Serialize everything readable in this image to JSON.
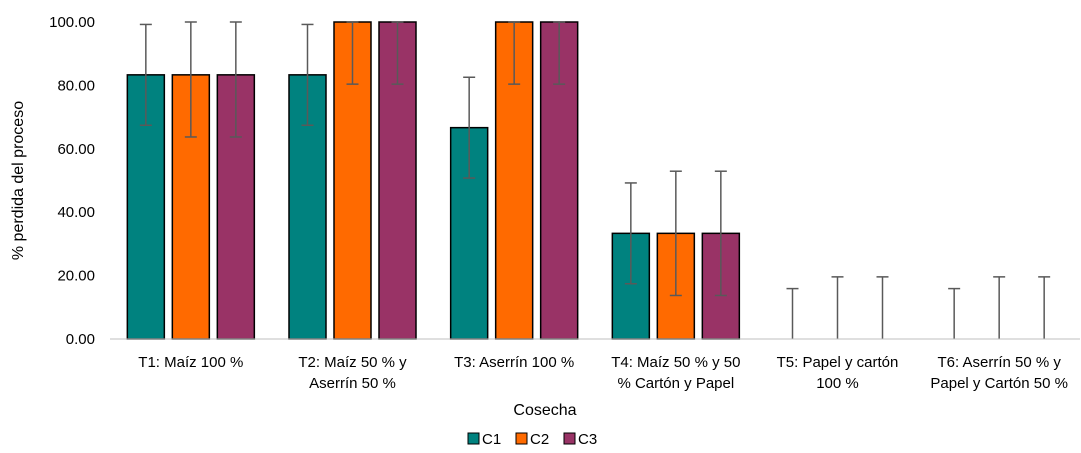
{
  "chart_data": {
    "type": "bar",
    "title": "",
    "xlabel": "Cosecha",
    "ylabel": "% perdida del proceso",
    "ylim": [
      0,
      100
    ],
    "yticks": [
      "0.00",
      "20.00",
      "40.00",
      "60.00",
      "80.00",
      "100.00"
    ],
    "grid": false,
    "legend_position": "bottom",
    "categories": [
      [
        "T1: Maíz 100 %"
      ],
      [
        "T2: Maíz 50 % y",
        "Aserrín 50 %"
      ],
      [
        "T3: Aserrín 100 %"
      ],
      [
        "T4: Maíz 50 % y 50",
        "% Cartón y Papel"
      ],
      [
        "T5: Papel y cartón",
        "100 %"
      ],
      [
        "T6: Aserrín 50 % y",
        "Papel y Cartón 50 %"
      ]
    ],
    "series": [
      {
        "name": "C1",
        "color": "#00827F",
        "values": [
          83.33,
          83.33,
          66.67,
          33.33,
          0,
          0
        ],
        "errors": [
          15.9,
          15.9,
          15.9,
          15.9,
          15.9,
          15.9
        ]
      },
      {
        "name": "C2",
        "color": "#FF6A00",
        "values": [
          83.33,
          100,
          100,
          33.33,
          0,
          0
        ],
        "errors": [
          19.6,
          19.6,
          19.6,
          19.6,
          19.6,
          19.6
        ]
      },
      {
        "name": "C3",
        "color": "#993366",
        "values": [
          83.33,
          100,
          100,
          33.33,
          0,
          0
        ],
        "errors": [
          19.6,
          19.6,
          19.6,
          19.6,
          19.6,
          19.6
        ]
      }
    ]
  }
}
